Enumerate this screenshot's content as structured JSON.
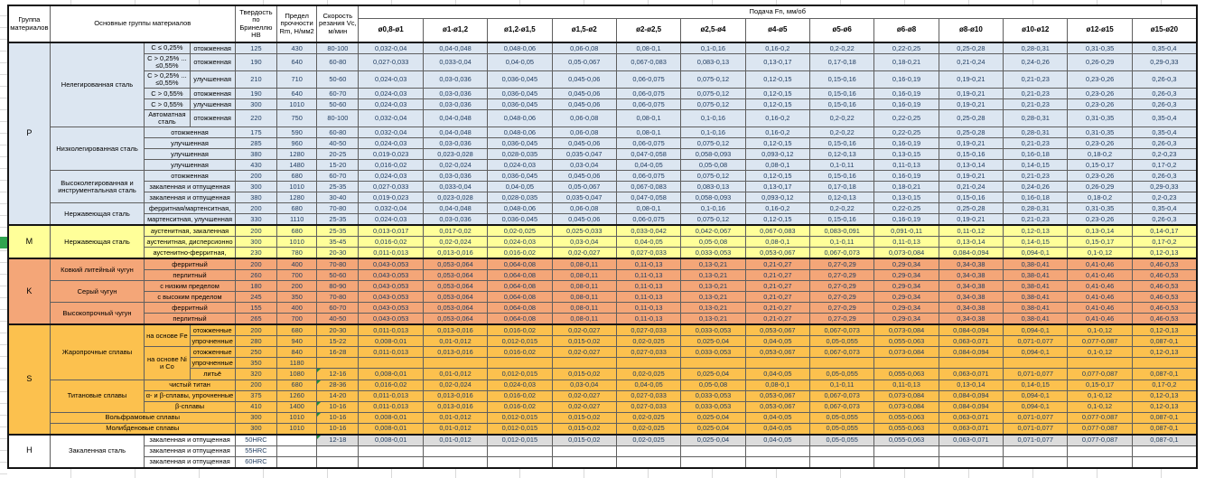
{
  "header": {
    "col_group": "Группа материалов",
    "col_main": "Основные группы материалов",
    "col_hb": "Твердость по Бринеллю HB",
    "col_rm": "Предел прочности Rm, Н/мм2",
    "col_vc": "Скорость резания Vc, м/мин",
    "col_feed": "Подача Fn, мм/об",
    "diameters": [
      "ø0,8-ø1",
      "ø1-ø1,2",
      "ø1,2-ø1,5",
      "ø1,5-ø2",
      "ø2-ø2,5",
      "ø2,5-ø4",
      "ø4-ø5",
      "ø5-ø6",
      "ø6-ø8",
      "ø8-ø10",
      "ø10-ø12",
      "ø12-ø15",
      "ø15-ø20"
    ],
    "flag_color": "#1e8e3e"
  },
  "colors": {
    "P": "#dce6f1",
    "M": "#ffff99",
    "K": "#f4a678",
    "S": "#fcc14e",
    "H": "#ffffff",
    "H_shade": "#dcdcdc"
  },
  "feed_values": {
    "A": [
      "0,032-0,04",
      "0,04-0,048",
      "0,048-0,06",
      "0,06-0,08",
      "0,08-0,1",
      "0,1-0,16",
      "0,16-0,2",
      "0,2-0,22",
      "0,22-0,25",
      "0,25-0,28",
      "0,28-0,31",
      "0,31-0,35",
      "0,35-0,4"
    ],
    "B": [
      "0,027-0,033",
      "0,033-0,04",
      "0,04-0,05",
      "0,05-0,067",
      "0,067-0,083",
      "0,083-0,13",
      "0,13-0,17",
      "0,17-0,18",
      "0,18-0,21",
      "0,21-0,24",
      "0,24-0,26",
      "0,26-0,29",
      "0,29-0,33"
    ],
    "C": [
      "0,024-0,03",
      "0,03-0,036",
      "0,036-0,045",
      "0,045-0,06",
      "0,06-0,075",
      "0,075-0,12",
      "0,12-0,15",
      "0,15-0,16",
      "0,16-0,19",
      "0,19-0,21",
      "0,21-0,23",
      "0,23-0,26",
      "0,26-0,3"
    ],
    "D": [
      "0,019-0,023",
      "0,023-0,028",
      "0,028-0,035",
      "0,035-0,047",
      "0,047-0,058",
      "0,058-0,093",
      "0,093-0,12",
      "0,12-0,13",
      "0,13-0,15",
      "0,15-0,16",
      "0,16-0,18",
      "0,18-0,2",
      "0,2-0,23"
    ],
    "E": [
      "0,016-0,02",
      "0,02-0,024",
      "0,024-0,03",
      "0,03-0,04",
      "0,04-0,05",
      "0,05-0,08",
      "0,08-0,1",
      "0,1-0,11",
      "0,11-0,13",
      "0,13-0,14",
      "0,14-0,15",
      "0,15-0,17",
      "0,17-0,2"
    ],
    "F": [
      "0,013-0,017",
      "0,017-0,02",
      "0,02-0,025",
      "0,025-0,033",
      "0,033-0,042",
      "0,042-0,067",
      "0,067-0,083",
      "0,083-0,091",
      "0,091-0,11",
      "0,11-0,12",
      "0,12-0,13",
      "0,13-0,14",
      "0,14-0,17"
    ],
    "G": [
      "0,011-0,013",
      "0,013-0,016",
      "0,016-0,02",
      "0,02-0,027",
      "0,027-0,033",
      "0,033-0,053",
      "0,053-0,067",
      "0,067-0,073",
      "0,073-0,084",
      "0,084-0,094",
      "0,094-0,1",
      "0,1-0,12",
      "0,12-0,13"
    ],
    "K": [
      "0,043-0,053",
      "0,053-0,064",
      "0,064-0,08",
      "0,08-0,11",
      "0,11-0,13",
      "0,13-0,21",
      "0,21-0,27",
      "0,27-0,29",
      "0,29-0,34",
      "0,34-0,38",
      "0,38-0,41",
      "0,41-0,46",
      "0,46-0,53"
    ],
    "H": [
      "0,008-0,01",
      "0,01-0,012",
      "0,012-0,015",
      "0,015-0,02",
      "0,02-0,025",
      "0,025-0,04",
      "0,04-0,05",
      "0,05-0,055",
      "0,055-0,063",
      "0,063-0,071",
      "0,071-0,077",
      "0,077-0,087",
      "0,087-0,1"
    ]
  },
  "groups": [
    {
      "letter": "P",
      "bg": "#dce6f1",
      "subgroups": [
        {
          "name": "Нелегированная сталь",
          "rows": [
            {
              "c1": "C ≤ 0,25%",
              "c2": "отожженная",
              "hb": "125",
              "rm": "430",
              "vc": "80-100",
              "feeds": "A"
            },
            {
              "c1": "C > 0,25% ... ≤0,55%",
              "c2": "отожженная",
              "hb": "190",
              "rm": "640",
              "vc": "60-80",
              "feeds": "B",
              "tall": true
            },
            {
              "c1": "C > 0,25% ... ≤0,55%",
              "c2": "улучшенная",
              "hb": "210",
              "rm": "710",
              "vc": "50-60",
              "feeds": "C",
              "tall": true
            },
            {
              "c1": "C > 0,55%",
              "c2": "отожженная",
              "hb": "190",
              "rm": "640",
              "vc": "60-70",
              "feeds": "C"
            },
            {
              "c1": "C > 0,55%",
              "c2": "улучшенная",
              "hb": "300",
              "rm": "1010",
              "vc": "50-60",
              "feeds": "C"
            },
            {
              "c1": "Автоматная сталь",
              "c2": "отожженная",
              "hb": "220",
              "rm": "750",
              "vc": "80-100",
              "feeds": "A",
              "tall": true
            }
          ]
        },
        {
          "name": "Низколегированная сталь",
          "rows": [
            {
              "cond": "отожженная",
              "hb": "175",
              "rm": "590",
              "vc": "60-80",
              "feeds": "A"
            },
            {
              "cond": "улучшенная",
              "hb": "285",
              "rm": "960",
              "vc": "40-50",
              "feeds": "C"
            },
            {
              "cond": "улучшенная",
              "hb": "380",
              "rm": "1280",
              "vc": "20-25",
              "feeds": "D"
            },
            {
              "cond": "улучшенная",
              "hb": "430",
              "rm": "1480",
              "vc": "15-20",
              "feeds": "E"
            }
          ]
        },
        {
          "name": "Высоколегированная и инструментальная сталь",
          "rows": [
            {
              "cond": "отожженная",
              "hb": "200",
              "rm": "680",
              "vc": "60-70",
              "feeds": "C"
            },
            {
              "cond": "закаленная и отпущенная",
              "hb": "300",
              "rm": "1010",
              "vc": "25-35",
              "feeds": "B"
            },
            {
              "cond": "закаленная и отпущенная",
              "hb": "380",
              "rm": "1280",
              "vc": "30-40",
              "feeds": "D"
            }
          ]
        },
        {
          "name": "Нержавеющая сталь",
          "rows": [
            {
              "cond": "ферритная/мартенситная,",
              "hb": "200",
              "rm": "680",
              "vc": "70-80",
              "feeds": "A"
            },
            {
              "cond": "мартенситная, улучшенная",
              "hb": "330",
              "rm": "1110",
              "vc": "25-35",
              "feeds": "C"
            }
          ]
        }
      ]
    },
    {
      "letter": "M",
      "bg": "#ffff99",
      "subgroups": [
        {
          "name": "Нержавеющая сталь",
          "rows": [
            {
              "cond": "аустенитная, закаленная",
              "hb": "200",
              "rm": "680",
              "vc": "25-35",
              "feeds": "F"
            },
            {
              "cond": "аустенитная, дисперсионно",
              "hb": "300",
              "rm": "1010",
              "vc": "35-45",
              "feeds": "E"
            },
            {
              "cond": "аустенитно-ферритная,",
              "hb": "230",
              "rm": "780",
              "vc": "20-30",
              "feeds": "G"
            }
          ]
        }
      ]
    },
    {
      "letter": "K",
      "bg": "#f4a678",
      "subgroups": [
        {
          "name": "Ковкий литейный чугун",
          "rows": [
            {
              "cond": "ферритный",
              "hb": "200",
              "rm": "400",
              "vc": "70-80",
              "feeds": "K"
            },
            {
              "cond": "перлитный",
              "hb": "260",
              "rm": "700",
              "vc": "50-60",
              "feeds": "K"
            }
          ]
        },
        {
          "name": "Серый чугун",
          "rows": [
            {
              "cond": "с низким пределом",
              "hb": "180",
              "rm": "200",
              "vc": "80-90",
              "feeds": "K"
            },
            {
              "cond": "с высоким пределом",
              "hb": "245",
              "rm": "350",
              "vc": "70-80",
              "feeds": "K"
            }
          ]
        },
        {
          "name": "Высокопрочный чугун",
          "rows": [
            {
              "cond": "ферритный",
              "hb": "155",
              "rm": "400",
              "vc": "60-70",
              "feeds": "K"
            },
            {
              "cond": "перлитный",
              "hb": "265",
              "rm": "700",
              "vc": "40-50",
              "feeds": "K"
            }
          ]
        }
      ]
    },
    {
      "letter": "S",
      "bg": "#fcc14e",
      "subgroups": [
        {
          "name": "Жаропрочные сплавы",
          "rows": [
            {
              "c1": "на основе Fe",
              "c1_rows": 2,
              "c2": "отожженные",
              "hb": "200",
              "rm": "680",
              "vc": "20-30",
              "feeds": "G"
            },
            {
              "c2": "упрочненные",
              "hb": "280",
              "rm": "940",
              "vc": "15-22",
              "feeds": "H"
            },
            {
              "c1": "на основе Ni и Co",
              "c1_rows": 3,
              "c2": "отожженные",
              "hb": "250",
              "rm": "840",
              "vc": "16-28",
              "feeds": "G"
            },
            {
              "c2": "упрочненные",
              "hb": "350",
              "rm": "1180",
              "vc": "",
              "feeds": ""
            },
            {
              "c2": "литьё",
              "hb": "320",
              "rm": "1080",
              "vc": "12-16",
              "flag": true,
              "feeds": "H"
            }
          ]
        },
        {
          "name": "Титановые сплавы",
          "rows": [
            {
              "cond": "чистый титан",
              "hb": "200",
              "rm": "680",
              "vc": "28-36",
              "flag": true,
              "feeds": "E"
            },
            {
              "cond": "α- и β-сплавы, упрочненные",
              "hb": "375",
              "rm": "1260",
              "vc": "14-20",
              "feeds": "G"
            },
            {
              "cond": "β-сплавы",
              "hb": "410",
              "rm": "1400",
              "vc": "10-16",
              "flag": true,
              "feeds": "G"
            }
          ]
        },
        {
          "name": "Вольфрамовые сплавы",
          "full": true,
          "rows": [
            {
              "hb": "300",
              "rm": "1010",
              "vc": "10-16",
              "flag": true,
              "feeds": "H"
            }
          ]
        },
        {
          "name": "Молибденовые сплавы",
          "full": true,
          "rows": [
            {
              "hb": "300",
              "rm": "1010",
              "vc": "10-16",
              "feeds": "H"
            }
          ]
        }
      ]
    },
    {
      "letter": "H",
      "bg": "#ffffff",
      "subgroups": [
        {
          "name": "Закаленная сталь",
          "rows": [
            {
              "cond": "закаленная и отпущенная",
              "hb": "50HRC",
              "rm": "",
              "vc": "12-18",
              "flag": true,
              "feeds": "H",
              "shade": true
            },
            {
              "cond": "закаленная и отпущенная",
              "hb": "55HRC",
              "rm": "",
              "vc": "",
              "feeds": ""
            },
            {
              "cond": "закаленная и отпущенная",
              "hb": "60HRC",
              "rm": "",
              "vc": "",
              "feeds": ""
            }
          ]
        }
      ]
    }
  ]
}
